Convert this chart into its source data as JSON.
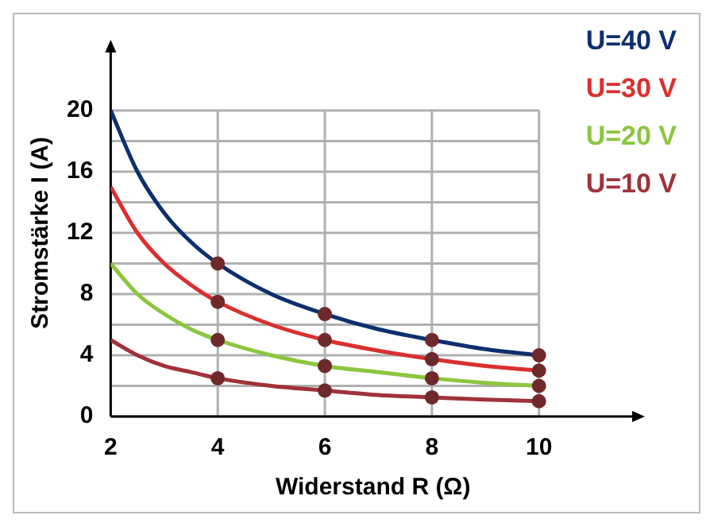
{
  "chart_data": {
    "type": "line",
    "xlabel": "Widerstand R (Ω)",
    "ylabel": "Stromstärke I (A)",
    "xlim": [
      2,
      11.8
    ],
    "ylim": [
      0,
      24
    ],
    "xticks": [
      2,
      4,
      6,
      8,
      10
    ],
    "yticks": [
      0,
      {
        "value": 2,
        "label": null
      },
      4,
      {
        "value": 6,
        "label": null
      },
      8,
      {
        "value": 10,
        "label": null
      },
      12,
      {
        "value": 14,
        "label": null
      },
      16,
      {
        "value": 18,
        "label": null
      },
      20
    ],
    "grid": true,
    "legend": "top right",
    "marker": "none",
    "series": [
      {
        "name": "U=40 V",
        "color": "#0d2f6e",
        "x": [
          2,
          2.5,
          3,
          3.5,
          4,
          5,
          6,
          7,
          8,
          9,
          10
        ],
        "values": [
          20,
          16,
          13.3,
          11.4,
          10,
          8,
          6.7,
          5.7,
          5,
          4.4,
          4
        ]
      },
      {
        "name": "U=30 V",
        "color": "#d9302f",
        "x": [
          2,
          2.5,
          3,
          3.5,
          4,
          5,
          6,
          7,
          8,
          9,
          10
        ],
        "values": [
          15,
          12,
          10,
          8.6,
          7.5,
          6,
          5,
          4.3,
          3.75,
          3.3,
          3
        ]
      },
      {
        "name": "U=20 V",
        "color": "#8cc63f",
        "x": [
          2,
          2.5,
          3,
          3.5,
          4,
          5,
          6,
          7,
          8,
          9,
          10
        ],
        "values": [
          10,
          8,
          6.7,
          5.7,
          5,
          4,
          3.3,
          2.9,
          2.5,
          2.2,
          2
        ]
      },
      {
        "name": "U=10 V",
        "color": "#a0323a",
        "x": [
          2,
          2.5,
          3,
          3.5,
          4,
          5,
          6,
          7,
          8,
          9,
          10
        ],
        "values": [
          5,
          4,
          3.3,
          2.9,
          2.5,
          2,
          1.7,
          1.4,
          1.25,
          1.1,
          1
        ]
      },
      {
        "type": "scatter",
        "marker": "circle",
        "color": "#6e2a2a",
        "x": [
          4,
          6,
          8,
          10,
          4,
          6,
          8,
          10,
          4,
          6,
          8,
          10,
          4,
          6,
          8,
          10
        ],
        "values": [
          10,
          6.7,
          5,
          4,
          7.5,
          5,
          3.75,
          3,
          5,
          3.3,
          2.5,
          2,
          2.5,
          1.7,
          1.25,
          1
        ]
      }
    ]
  }
}
